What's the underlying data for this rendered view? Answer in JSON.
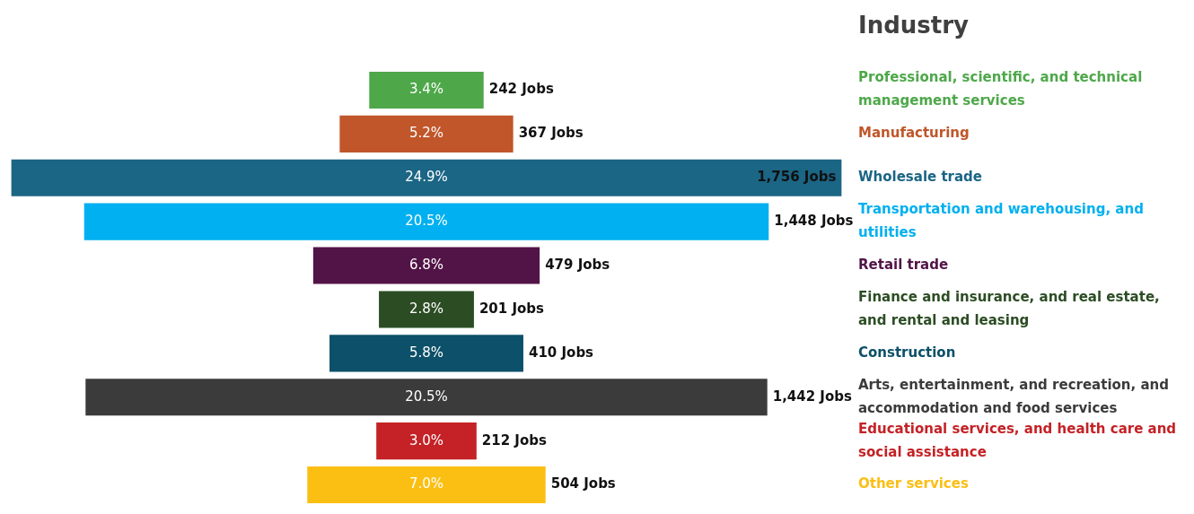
{
  "chart_data": {
    "type": "other",
    "legend_title": "Industry",
    "categories": [
      "Professional, scientific, and technical management services",
      "Manufacturing",
      "Wholesale trade",
      "Transportation and warehousing, and utilities",
      "Retail trade",
      "Finance and insurance, and real estate, and rental and leasing",
      "Construction",
      "Arts, entertainment, and recreation, and accommodation and food services",
      "Educational services, and health care and social assistance",
      "Other services"
    ],
    "series": [
      {
        "colors": [
          "#4ea84a",
          "#c0562a",
          "#1b6585",
          "#00b0f0",
          "#521447",
          "#2c4d24",
          "#0c5069",
          "#3b3b3b",
          "#c42226",
          "#fbbf14"
        ],
        "values": [
          242,
          367,
          1756,
          1448,
          479,
          201,
          410,
          1442,
          212,
          504
        ],
        "value_labels": [
          "242 Jobs",
          "367 Jobs",
          "1,756 Jobs",
          "1,448 Jobs",
          "479 Jobs",
          "201 Jobs",
          "410 Jobs",
          "1,442 Jobs",
          "212 Jobs",
          "504 Jobs"
        ]
      },
      {
        "colors": [
          "#4ea84a",
          "#c0562a",
          "#1b6585",
          "#00b0f0",
          "#521447",
          "#2c4d24",
          "#0c5069",
          "#3b3b3b",
          "#c42226",
          "#fbbf14"
        ],
        "values": [
          3.4,
          5.2,
          24.9,
          20.5,
          6.8,
          2.8,
          5.8,
          20.5,
          3.0,
          7.0
        ],
        "value_labels": [
          "3.4%",
          "5.2%",
          "24.9%",
          "20.5%",
          "6.8%",
          "2.8%",
          "5.8%",
          "20.5%",
          "3.0%",
          "7.0%"
        ]
      }
    ]
  }
}
